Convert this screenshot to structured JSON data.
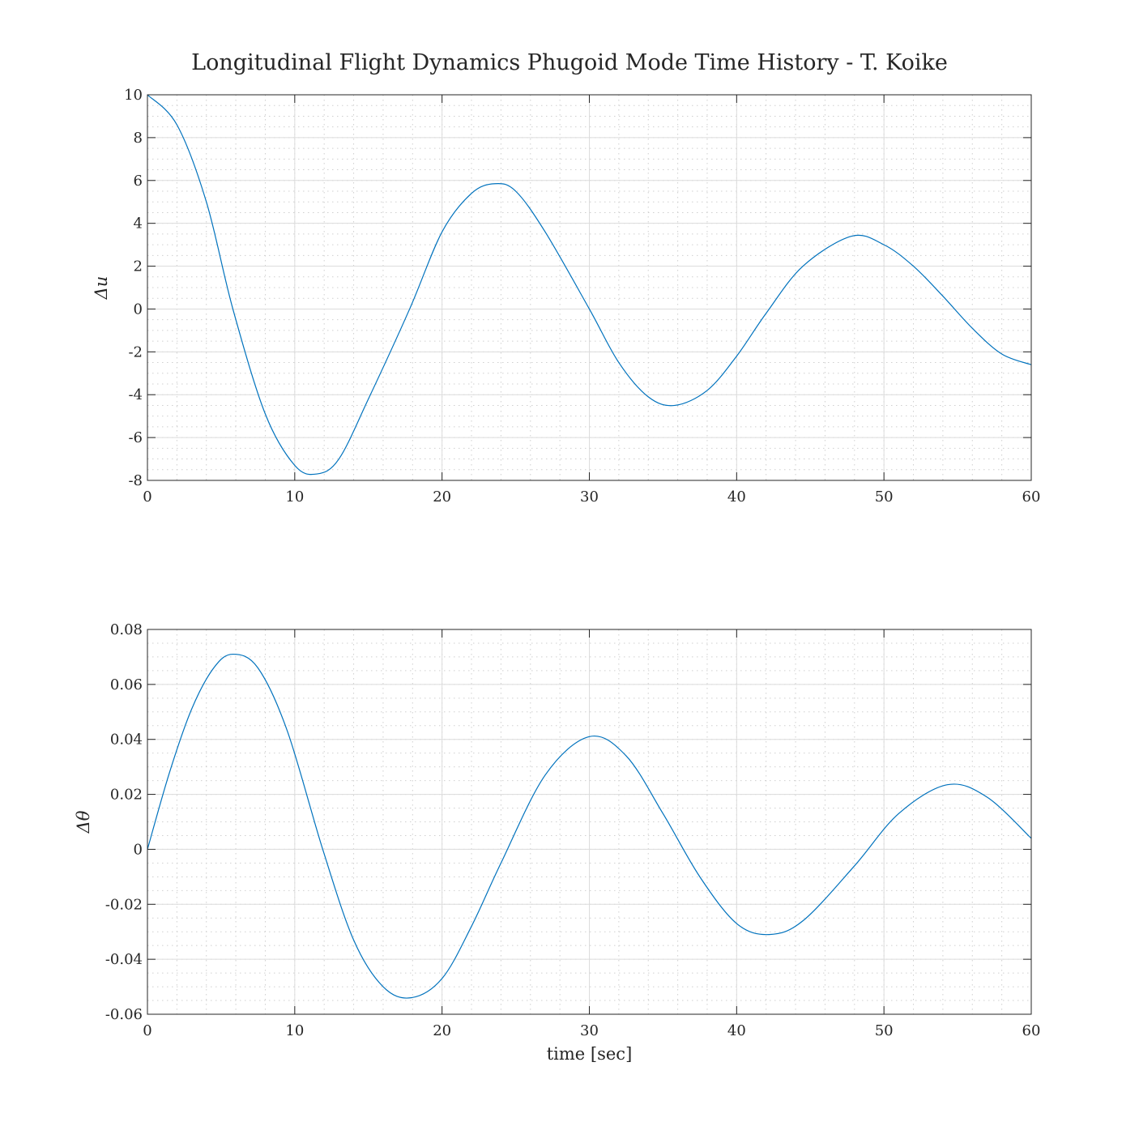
{
  "figure": {
    "title": "Longitudinal Flight Dynamics Phugoid Mode Time History - T. Koike"
  },
  "chart_data": [
    {
      "type": "line",
      "title": "",
      "xlabel": "",
      "ylabel": "Δu",
      "xlim": [
        0,
        60
      ],
      "ylim": [
        -8,
        10
      ],
      "xticks": [
        0,
        10,
        20,
        30,
        40,
        50,
        60
      ],
      "yticks": [
        -8,
        -6,
        -4,
        -2,
        0,
        2,
        4,
        6,
        8,
        10
      ],
      "xtick_labels": [
        "0",
        "10",
        "20",
        "30",
        "40",
        "50",
        "60"
      ],
      "ytick_labels": [
        "-8",
        "-6",
        "-4",
        "-2",
        "0",
        "2",
        "4",
        "6",
        "8",
        "10"
      ],
      "grid": true,
      "minor_grid": true,
      "line_color": "#0072BD",
      "series": [
        {
          "x": [
            0,
            2,
            4,
            5.8,
            8,
            10,
            11.5,
            13,
            15,
            17.8,
            20,
            22,
            23.6,
            25,
            27,
            30,
            32,
            34,
            35.8,
            38,
            40,
            42,
            44.5,
            47.8,
            50,
            52,
            54,
            56,
            58,
            60
          ],
          "y": [
            10,
            8.6,
            5.0,
            0,
            -4.9,
            -7.3,
            -7.7,
            -7.0,
            -4.2,
            0,
            3.6,
            5.4,
            5.85,
            5.5,
            3.6,
            0,
            -2.5,
            -4.1,
            -4.5,
            -3.8,
            -2.2,
            -0.2,
            2.0,
            3.4,
            3.0,
            2.0,
            0.6,
            -0.9,
            -2.1,
            -2.6
          ]
        }
      ]
    },
    {
      "type": "line",
      "title": "",
      "xlabel": "time [sec]",
      "ylabel": "Δθ",
      "xlim": [
        0,
        60
      ],
      "ylim": [
        -0.06,
        0.08
      ],
      "xticks": [
        0,
        10,
        20,
        30,
        40,
        50,
        60
      ],
      "yticks": [
        -0.06,
        -0.04,
        -0.02,
        0,
        0.02,
        0.04,
        0.06,
        0.08
      ],
      "xtick_labels": [
        "0",
        "10",
        "20",
        "30",
        "40",
        "50",
        "60"
      ],
      "ytick_labels": [
        "-0.06",
        "-0.04",
        "-0.02",
        "0",
        "0.02",
        "0.04",
        "0.06",
        "0.08"
      ],
      "grid": true,
      "minor_grid": true,
      "line_color": "#0072BD",
      "series": [
        {
          "x": [
            0,
            1.5,
            3,
            4.5,
            5.8,
            7.5,
            9.5,
            11.9,
            14,
            16,
            17.9,
            20,
            22,
            24,
            27,
            30,
            32.5,
            35,
            37.5,
            40,
            42.2,
            44.5,
            48,
            51,
            54.3,
            57,
            60
          ],
          "y": [
            0,
            0.028,
            0.051,
            0.066,
            0.071,
            0.066,
            0.043,
            0,
            -0.033,
            -0.05,
            -0.054,
            -0.047,
            -0.028,
            -0.005,
            0.027,
            0.041,
            0.034,
            0.013,
            -0.01,
            -0.027,
            -0.031,
            -0.026,
            -0.006,
            0.013,
            0.0235,
            0.019,
            0.004
          ]
        }
      ]
    }
  ]
}
